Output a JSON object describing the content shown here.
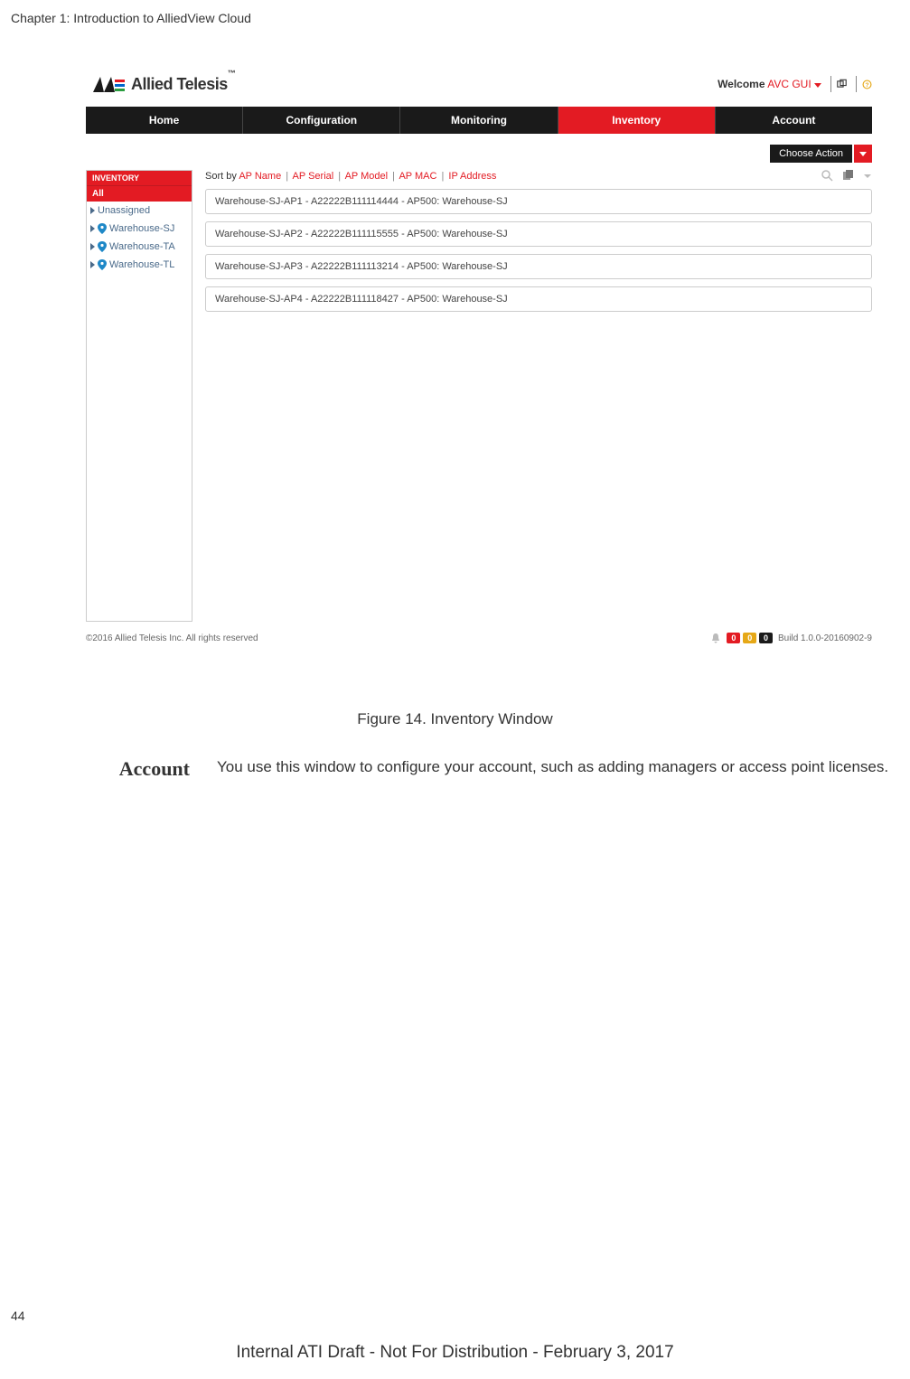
{
  "chapter_header": "Chapter 1: Introduction to AlliedView Cloud",
  "logo_text": "Allied Telesis",
  "welcome": {
    "label": "Welcome",
    "user": "AVC GUI"
  },
  "nav": {
    "tabs": [
      "Home",
      "Configuration",
      "Monitoring",
      "Inventory",
      "Account"
    ],
    "active_index": 3
  },
  "choose_action": "Choose Action",
  "sidebar": {
    "header": "INVENTORY",
    "all_label": "All",
    "items": [
      {
        "label": "Unassigned",
        "icon": false
      },
      {
        "label": "Warehouse-SJ",
        "icon": true
      },
      {
        "label": "Warehouse-TA",
        "icon": true
      },
      {
        "label": "Warehouse-TL",
        "icon": true
      }
    ]
  },
  "sort": {
    "label": "Sort by",
    "options": [
      "AP Name",
      "AP Serial",
      "AP Model",
      "AP MAC",
      "IP Address"
    ]
  },
  "rows": [
    "Warehouse-SJ-AP1 - A22222B111114444 - AP500: Warehouse-SJ",
    "Warehouse-SJ-AP2 - A22222B111115555 - AP500: Warehouse-SJ",
    "Warehouse-SJ-AP3 - A22222B111113214 - AP500: Warehouse-SJ",
    "Warehouse-SJ-AP4 - A22222B111118427 - AP500: Warehouse-SJ"
  ],
  "footer": {
    "copyright": "©2016 Allied Telesis Inc. All rights reserved",
    "badges": [
      {
        "text": "0",
        "color": "#e31b23"
      },
      {
        "text": "0",
        "color": "#e6a817"
      },
      {
        "text": "0",
        "color": "#1a1a1a"
      }
    ],
    "build": "Build 1.0.0-20160902-9"
  },
  "figure_caption": "Figure 14. Inventory Window",
  "section": {
    "label": "Account",
    "body": "You use this window to configure your account, such as adding managers or access point licenses."
  },
  "page_num": "44",
  "draft_line": "Internal ATI Draft - Not For Distribution - February 3, 2017",
  "colors": {
    "brand_red": "#e31b23",
    "nav_dark": "#1a1a1a",
    "link_blue": "#4a6a8a"
  }
}
